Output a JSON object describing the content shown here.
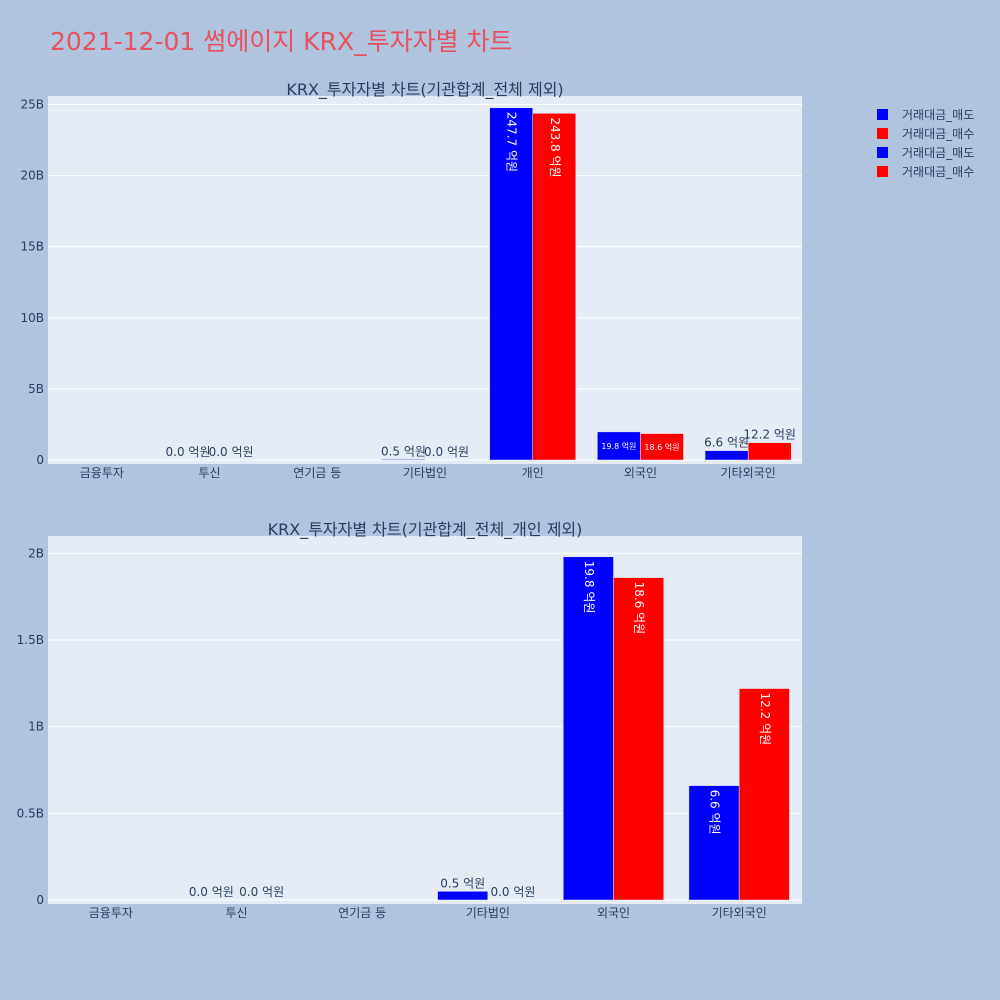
{
  "page": {
    "title": "2021-12-01 썸에이지 KRX_투자자별 차트"
  },
  "legend": [
    {
      "name": "거래대금_매도",
      "color": "#0000ff"
    },
    {
      "name": "거래대금_매수",
      "color": "#ff0000"
    },
    {
      "name": "거래대금_매도",
      "color": "#0000ff"
    },
    {
      "name": "거래대금_매수",
      "color": "#ff0000"
    }
  ],
  "chart_data": [
    {
      "type": "bar",
      "title": "KRX_투자자별 차트(기관합계_전체 제외)",
      "categories": [
        "금융투자",
        "투신",
        "연기금 등",
        "기타법인",
        "개인",
        "외국인",
        "기타외국인"
      ],
      "ylim": [
        0,
        25600000000
      ],
      "yticks": [
        0,
        5000000000,
        10000000000,
        15000000000,
        20000000000,
        25000000000
      ],
      "ytick_labels": [
        "0",
        "5B",
        "10B",
        "15B",
        "20B",
        "25B"
      ],
      "grid": true,
      "legend_position": "top-right",
      "series": [
        {
          "name": "거래대금_매도",
          "color": "#0000ff",
          "values": [
            0,
            0,
            0,
            50000000,
            24770000000,
            1980000000,
            660000000
          ],
          "labels": [
            "",
            "0.0 억원",
            "",
            "0.5 억원",
            "247.7 억원",
            "19.8 억원",
            "6.6 억원"
          ]
        },
        {
          "name": "거래대금_매수",
          "color": "#ff0000",
          "values": [
            0,
            0,
            0,
            0,
            24380000000,
            1860000000,
            1220000000
          ],
          "labels": [
            "",
            "0.0 억원",
            "",
            "0.0 억원",
            "243.8 억원",
            "18.6 억원",
            "12.2 억원"
          ]
        }
      ]
    },
    {
      "type": "bar",
      "title": "KRX_투자자별 차트(기관합계_전체_개인 제외)",
      "categories": [
        "금융투자",
        "투신",
        "연기금 등",
        "기타법인",
        "외국인",
        "기타외국인"
      ],
      "ylim": [
        0,
        2100000000
      ],
      "yticks": [
        0,
        500000000,
        1000000000,
        1500000000,
        2000000000
      ],
      "ytick_labels": [
        "0",
        "0.5B",
        "1B",
        "1.5B",
        "2B"
      ],
      "grid": true,
      "series": [
        {
          "name": "거래대금_매도",
          "color": "#0000ff",
          "values": [
            0,
            0,
            0,
            50000000,
            1980000000,
            660000000
          ],
          "labels": [
            "",
            "0.0 억원",
            "",
            "0.5 억원",
            "19.8 억원",
            "6.6 억원"
          ]
        },
        {
          "name": "거래대금_매수",
          "color": "#ff0000",
          "values": [
            0,
            0,
            0,
            0,
            1860000000,
            1220000000
          ],
          "labels": [
            "",
            "0.0 억원",
            "",
            "0.0 억원",
            "18.6 억원",
            "12.2 억원"
          ]
        }
      ]
    }
  ]
}
